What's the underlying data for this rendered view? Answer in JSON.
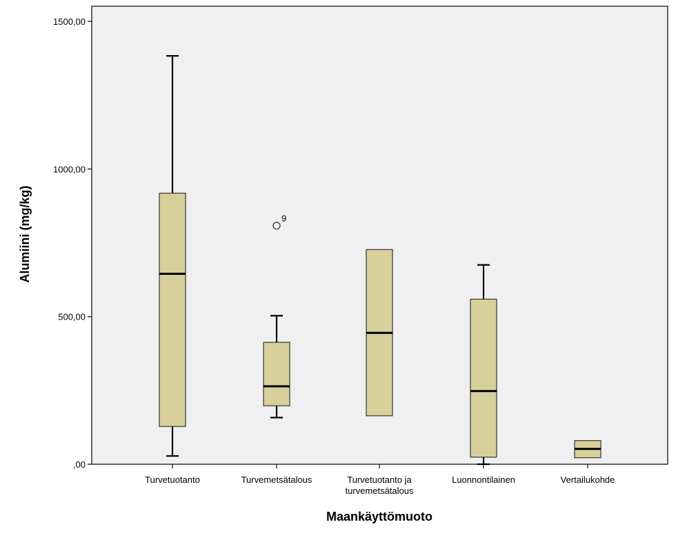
{
  "chart_data": {
    "type": "boxplot",
    "xlabel": "Maankäyttömuoto",
    "ylabel": "Alumiini (mg/kg)",
    "ylim": [
      0,
      1500
    ],
    "yticks": [
      0,
      500,
      1000,
      1500
    ],
    "ytick_labels": [
      ",00",
      "500,00",
      "1000,00",
      "1500,00"
    ],
    "grid": false,
    "plot_background": "#f0f0f0",
    "box_color": "#d8d09a",
    "categories": [
      {
        "label_lines": [
          "Turvetuotanto"
        ],
        "min": 28,
        "q1": 128,
        "median": 645,
        "q3": 918,
        "max": 1383,
        "outliers": []
      },
      {
        "label_lines": [
          "Turvemetsätalous"
        ],
        "min": 158,
        "q1": 198,
        "median": 264,
        "q3": 413,
        "max": 503,
        "outliers": [
          {
            "value": 808,
            "label": "9"
          }
        ]
      },
      {
        "label_lines": [
          "Turvetuotanto ja",
          "turvemetsätalous"
        ],
        "min": 164,
        "q1": 164,
        "median": 445,
        "q3": 727,
        "max": 727,
        "outliers": []
      },
      {
        "label_lines": [
          "Luonnontilainen"
        ],
        "min": 0,
        "q1": 24,
        "median": 248,
        "q3": 559,
        "max": 675,
        "outliers": []
      },
      {
        "label_lines": [
          "Vertailukohde"
        ],
        "min": 22,
        "q1": 22,
        "median": 52,
        "q3": 80,
        "max": 80,
        "outliers": []
      }
    ]
  }
}
